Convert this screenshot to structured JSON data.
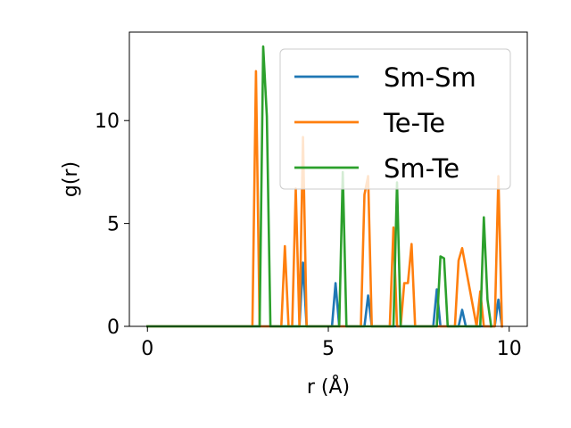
{
  "chart_data": {
    "type": "line",
    "title": "",
    "xlabel": "r (Å)",
    "ylabel": "g(r)",
    "xlim": [
      -0.5,
      10.5
    ],
    "ylim": [
      0,
      14.3
    ],
    "xticks": [
      0,
      5,
      10
    ],
    "yticks": [
      0,
      5,
      10
    ],
    "xtick_labels": [
      "0",
      "5",
      "10"
    ],
    "ytick_labels": [
      "0",
      "5",
      "10"
    ],
    "grid": false,
    "legend_position": "top-right",
    "series": [
      {
        "name": "Sm-Sm",
        "color": "#1f77b4",
        "x": [
          0,
          4.2,
          4.3,
          4.4,
          5.1,
          5.2,
          5.3,
          5.4,
          6.0,
          6.1,
          6.2,
          7.9,
          8.0,
          8.1,
          8.6,
          8.7,
          8.8,
          9.6,
          9.7,
          9.8
        ],
        "y": [
          0,
          0,
          3.1,
          0,
          0,
          2.1,
          0,
          0,
          0,
          1.5,
          0,
          0,
          1.8,
          0,
          0,
          0.8,
          0,
          0,
          1.3,
          0
        ]
      },
      {
        "name": "Te-Te",
        "color": "#ff7f0e",
        "x": [
          0,
          2.9,
          3.0,
          3.1,
          3.7,
          3.8,
          3.9,
          4.0,
          4.1,
          4.2,
          4.3,
          4.4,
          5.9,
          6.0,
          6.1,
          6.2,
          6.7,
          6.8,
          6.9,
          7.0,
          7.1,
          7.2,
          7.3,
          7.4,
          7.5,
          8.5,
          8.6,
          8.7,
          9.1,
          9.2,
          9.3,
          9.6,
          9.7,
          9.8
        ],
        "y": [
          0,
          0,
          12.4,
          0,
          0,
          3.9,
          0,
          0,
          6.7,
          0,
          9.2,
          0,
          0,
          6.4,
          7.3,
          0,
          0,
          4.8,
          0,
          0,
          2.1,
          2.1,
          4.0,
          0,
          0,
          0,
          3.2,
          3.8,
          0,
          1.7,
          0,
          0,
          7.3,
          0
        ]
      },
      {
        "name": "Sm-Te",
        "color": "#2ca02c",
        "x": [
          0,
          3.1,
          3.2,
          3.3,
          3.4,
          5.3,
          5.4,
          5.5,
          6.8,
          6.9,
          7.0,
          8.0,
          8.1,
          8.2,
          8.3,
          9.2,
          9.3,
          9.4,
          9.5
        ],
        "y": [
          0,
          0,
          13.6,
          10.2,
          0,
          0,
          7.5,
          0,
          0,
          7.0,
          0,
          0,
          3.4,
          3.3,
          0,
          0,
          5.3,
          1.3,
          0
        ]
      }
    ]
  }
}
